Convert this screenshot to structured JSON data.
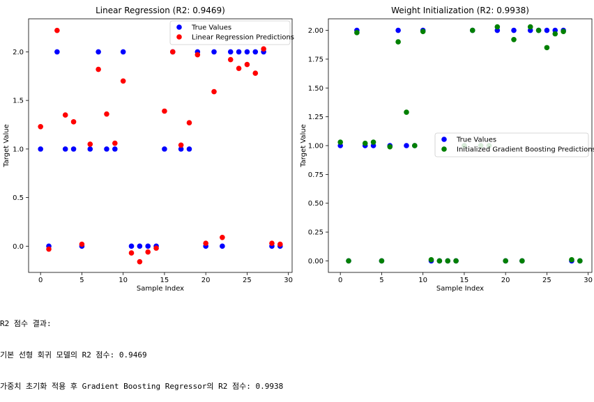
{
  "chart_data": [
    {
      "type": "scatter",
      "title": "Linear Regression (R2: 0.9469)",
      "xlabel": "Sample Index",
      "ylabel": "Target Value",
      "xlim": [
        -1.45,
        30.45
      ],
      "ylim": [
        -0.27,
        2.34
      ],
      "xticks": [
        0,
        5,
        10,
        15,
        20,
        25,
        30
      ],
      "xtick_labels": [
        "0",
        "5",
        "10",
        "15",
        "20",
        "25",
        "30"
      ],
      "yticks": [
        0,
        0.5,
        1,
        1.5,
        2
      ],
      "ytick_labels": [
        "0.0",
        "0.5",
        "1.0",
        "1.5",
        "2.0"
      ],
      "legend_position": "top-right",
      "series": [
        {
          "name": "True Values",
          "color": "#0000ff",
          "x": [
            0,
            1,
            2,
            3,
            4,
            5,
            6,
            7,
            8,
            9,
            10,
            11,
            12,
            13,
            14,
            15,
            16,
            17,
            18,
            19,
            20,
            21,
            22,
            23,
            24,
            25,
            26,
            27,
            28,
            29
          ],
          "y": [
            1,
            0,
            2,
            1,
            1,
            0,
            1,
            2,
            1,
            1,
            2,
            0,
            0,
            0,
            0,
            1,
            2,
            1,
            1,
            2,
            0,
            2,
            0,
            2,
            2,
            2,
            2,
            2,
            0,
            0
          ]
        },
        {
          "name": "Linear Regression Predictions",
          "color": "#ff0000",
          "x": [
            0,
            1,
            2,
            3,
            4,
            5,
            6,
            7,
            8,
            9,
            10,
            11,
            12,
            13,
            14,
            15,
            16,
            17,
            18,
            19,
            20,
            21,
            22,
            23,
            24,
            25,
            26,
            27,
            28,
            29
          ],
          "y": [
            1.23,
            -0.03,
            2.22,
            1.35,
            1.28,
            0.02,
            1.05,
            1.82,
            1.36,
            1.06,
            1.7,
            -0.07,
            -0.16,
            -0.06,
            -0.02,
            1.39,
            2.0,
            1.04,
            1.27,
            1.97,
            0.03,
            1.59,
            0.09,
            1.92,
            1.83,
            1.87,
            1.78,
            2.03,
            0.03,
            0.02
          ]
        }
      ]
    },
    {
      "type": "scatter",
      "title": "Weight Initialization (R2: 0.9938)",
      "xlabel": "Sample Index",
      "ylabel": "Target Value",
      "xlim": [
        -1.45,
        30.45
      ],
      "ylim": [
        -0.1,
        2.1
      ],
      "xticks": [
        0,
        5,
        10,
        15,
        20,
        25,
        30
      ],
      "xtick_labels": [
        "0",
        "5",
        "10",
        "15",
        "20",
        "25",
        "30"
      ],
      "yticks": [
        0,
        0.25,
        0.5,
        0.75,
        1,
        1.25,
        1.5,
        1.75,
        2
      ],
      "ytick_labels": [
        "0.00",
        "0.25",
        "0.50",
        "0.75",
        "1.00",
        "1.25",
        "1.50",
        "1.75",
        "2.00"
      ],
      "legend_position": "center-right",
      "series": [
        {
          "name": "True Values",
          "color": "#0000ff",
          "x": [
            0,
            1,
            2,
            3,
            4,
            5,
            6,
            7,
            8,
            9,
            10,
            11,
            12,
            13,
            14,
            15,
            16,
            17,
            18,
            19,
            20,
            21,
            22,
            23,
            24,
            25,
            26,
            27,
            28,
            29
          ],
          "y": [
            1,
            0,
            2,
            1,
            1,
            0,
            1,
            2,
            1,
            1,
            2,
            0,
            0,
            0,
            0,
            1,
            2,
            1,
            1,
            2,
            0,
            2,
            0,
            2,
            2,
            2,
            2,
            2,
            0,
            0
          ]
        },
        {
          "name": "Initialized Gradient Boosting Predictions",
          "color": "#008000",
          "x": [
            0,
            1,
            2,
            3,
            4,
            5,
            6,
            7,
            8,
            9,
            10,
            11,
            12,
            13,
            14,
            15,
            16,
            17,
            18,
            19,
            20,
            21,
            22,
            23,
            24,
            25,
            26,
            27,
            28,
            29
          ],
          "y": [
            1.03,
            0.0,
            1.98,
            1.02,
            1.03,
            0.0,
            0.99,
            1.9,
            1.29,
            1.0,
            1.99,
            0.01,
            0.0,
            0.0,
            0.0,
            1.0,
            2.0,
            1.0,
            1.0,
            2.03,
            0.0,
            1.92,
            0.0,
            2.03,
            2.0,
            1.85,
            1.97,
            1.99,
            0.01,
            0.0
          ]
        }
      ]
    }
  ],
  "output_lines": [
    "R2 점수 결과:",
    "기본 선형 회귀 모델의 R2 점수: 0.9469",
    "가중치 초기화 적용 후 Gradient Boosting Regressor의 R2 점수: 0.9938"
  ]
}
